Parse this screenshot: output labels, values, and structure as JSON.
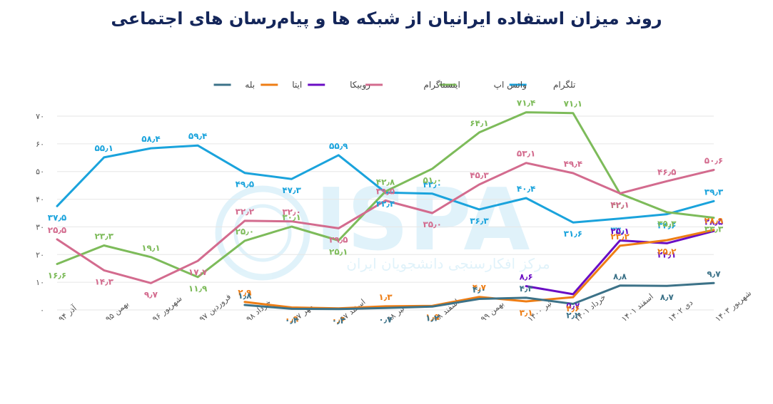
{
  "chart_data": {
    "type": "line",
    "title": "روند میزان استفاده ایرانیان از شبکه ها و پیام‌رسان های اجتماعی",
    "xlabel": "",
    "ylabel": "",
    "ylim": [
      0,
      70
    ],
    "yticks": [
      0,
      10,
      20,
      30,
      40,
      50,
      60,
      70
    ],
    "ytick_labels": [
      "۰",
      "۱۰",
      "۲۰",
      "۳۰",
      "۴۰",
      "۵۰",
      "۶۰",
      "۷۰"
    ],
    "grid": true,
    "legend_position": "top-center",
    "categories": [
      "آذر ۹۴",
      "بهمن ۹۵",
      "شهریور ۹۶",
      "فروردین ۹۷",
      "خرداد ۹۸",
      "مهر ۹۷",
      "اسفند ۹۷",
      "تیر ۹۸",
      "اسفند ۹۸",
      "بهمن ۹۹",
      "تیر ۱۴۰۰",
      "خرداد ۱۴۰۱",
      "اسفند ۱۴۰۱",
      "دی ۱۴۰۲",
      "شهریور ۱۴۰۳"
    ],
    "series": [
      {
        "name": "تلگرام",
        "color": "#1aa3dc",
        "values": [
          37.5,
          55.1,
          58.4,
          59.4,
          49.5,
          47.3,
          55.9,
          42.4,
          42.0,
          36.3,
          40.4,
          31.6,
          33.0,
          34.6,
          39.3
        ],
        "labels": [
          "۳۷٫۵",
          "۵۵٫۱",
          "۵۸٫۴",
          "۵۹٫۴",
          "۴۹٫۵",
          "۴۷٫۳",
          "۵۵٫۹",
          "۴۲٫۴",
          "۴۲٫۰",
          "۳۶٫۳",
          "۴۰٫۴",
          "۳۱٫۶",
          "۳۳٫۰",
          "۳۴٫۶",
          "۳۹٫۳"
        ]
      },
      {
        "name": "واتس اپ",
        "color": "#7dbb5a",
        "values": [
          16.6,
          23.3,
          19.1,
          11.9,
          25.0,
          30.1,
          25.1,
          42.8,
          51.0,
          64.1,
          71.4,
          71.1,
          42.0,
          35.3,
          33.3
        ],
        "labels": [
          "۱۶٫۶",
          "۲۳٫۳",
          "۱۹٫۱",
          "۱۱٫۹",
          "۲۵٫۰",
          "۳۰٫۱",
          "۲۵٫۱",
          "۴۲٫۸",
          "۵۱٫۰",
          "۶۴٫۱",
          "۷۱٫۴",
          "۷۱٫۱",
          "۴۲٫۰",
          "۳۵٫۳",
          "۳۳٫۳"
        ]
      },
      {
        "name": "اینستاگرام",
        "color": "#d36b8e",
        "values": [
          25.5,
          14.3,
          9.7,
          17.7,
          32.2,
          32.0,
          29.5,
          39.5,
          35.0,
          45.3,
          53.1,
          49.4,
          42.1,
          46.5,
          50.6
        ],
        "labels": [
          "۲۵٫۵",
          "۱۴٫۳",
          "۹٫۷",
          "۱۷٫۷",
          "۳۲٫۲",
          "۳۲٫۰",
          "۲۹٫۵",
          "۳۹٫۵",
          "۳۵٫۰",
          "۴۵٫۳",
          "۵۳٫۱",
          "۴۹٫۴",
          "۴۲٫۱",
          "۴۶٫۵",
          "۵۰٫۶"
        ]
      },
      {
        "name": "روبیکا",
        "color": "#6a0dc4",
        "values": [
          null,
          null,
          null,
          null,
          null,
          null,
          null,
          null,
          null,
          null,
          8.6,
          5.7,
          25.1,
          24.1,
          28.5
        ],
        "labels": [
          "",
          "",
          "",
          "",
          "",
          "",
          "",
          "",
          "",
          "",
          "۸٫۶",
          "۵٫۷",
          "۲۵٫۱",
          "۲۴٫۱",
          "۲۸٫۵"
        ]
      },
      {
        "name": "ایتا",
        "color": "#ee7d14",
        "values": [
          null,
          null,
          null,
          null,
          2.9,
          0.9,
          0.6,
          1.3,
          1.5,
          4.7,
          3.1,
          4.6,
          23.2,
          25.2,
          28.9
        ],
        "labels": [
          "",
          "",
          "",
          "",
          "۲٫۹",
          "۰٫۹",
          "۰٫۶",
          "۱٫۳",
          "۱٫۵",
          "۴٫۷",
          "۳٫۱",
          "۴٫۶",
          "۲۳٫۲",
          "۲۵٫۲",
          "۲۸٫۹"
        ]
      },
      {
        "name": "بله",
        "color": "#3c7288",
        "values": [
          null,
          null,
          null,
          null,
          1.8,
          0.4,
          0.3,
          0.7,
          1.2,
          4.0,
          4.4,
          2.2,
          8.8,
          8.7,
          9.7
        ],
        "labels": [
          "",
          "",
          "",
          "",
          "۱٫۸",
          "۰٫۴",
          "۰٫۳",
          "۰٫۷",
          "۱٫۲",
          "۴٫۰",
          "۴٫۴",
          "۲٫۲",
          "۸٫۸",
          "۸٫۷",
          "۹٫۷"
        ]
      }
    ],
    "watermark": {
      "brand": "ISPA",
      "org": "مرکز افکارسنجی دانشجویان ایران"
    }
  }
}
